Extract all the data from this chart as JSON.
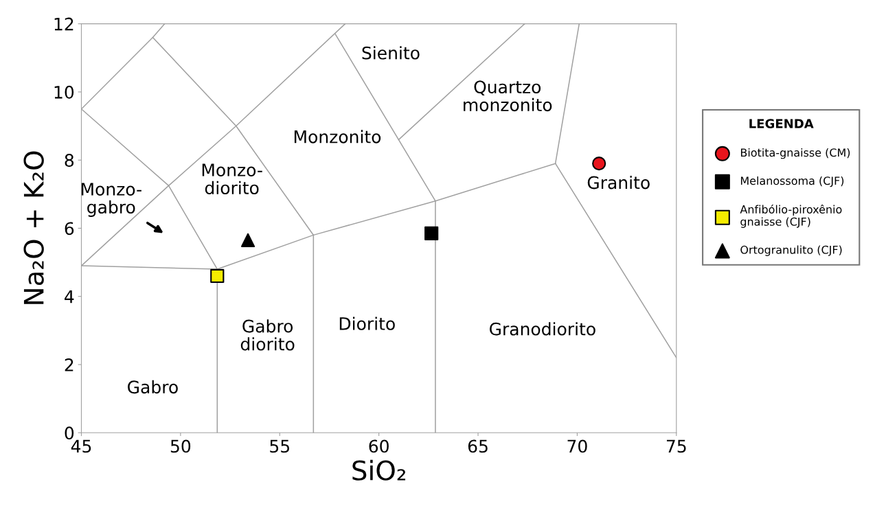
{
  "chart_data": {
    "type": "scatter",
    "xlabel": "SiO₂",
    "ylabel": "Na₂O + K₂O",
    "xlim": [
      45,
      75
    ],
    "ylim": [
      0,
      12
    ],
    "xticks": [
      45,
      50,
      55,
      60,
      65,
      70,
      75
    ],
    "yticks": [
      0,
      2,
      4,
      6,
      8,
      10,
      12
    ],
    "grid": false,
    "legend": "right",
    "legend_title": "LEGENDA",
    "series": [
      {
        "type": "line",
        "color": "#a0a0a0",
        "x": [
          45,
          49.4,
          51.85
        ],
        "values": [
          9.5,
          7.25,
          4.8
        ]
      },
      {
        "type": "line",
        "color": "#a0a0a0",
        "x": [
          45,
          49.4,
          52.8,
          58.3
        ],
        "values": [
          4.9,
          7.25,
          9.0,
          12
        ]
      },
      {
        "type": "line",
        "color": "#a0a0a0",
        "x": [
          45,
          48.6,
          49.2
        ],
        "values": [
          9.5,
          11.6,
          12
        ]
      },
      {
        "type": "line",
        "color": "#a0a0a0",
        "x": [
          48.6,
          52.8,
          56.7
        ],
        "values": [
          11.6,
          9.0,
          5.8
        ]
      },
      {
        "type": "line",
        "color": "#a0a0a0",
        "x": [
          57.8,
          62.85
        ],
        "values": [
          11.7,
          6.8
        ]
      },
      {
        "type": "line",
        "color": "#a0a0a0",
        "x": [
          61.0,
          67.35
        ],
        "values": [
          8.6,
          12
        ]
      },
      {
        "type": "line",
        "color": "#a0a0a0",
        "x": [
          70.1,
          68.9,
          75
        ],
        "values": [
          12,
          7.9,
          2.2
        ]
      },
      {
        "type": "line",
        "color": "#a0a0a0",
        "x": [
          45,
          51.85,
          56.7,
          62.85,
          68.9
        ],
        "values": [
          4.9,
          4.8,
          5.8,
          6.8,
          7.9
        ]
      },
      {
        "type": "line",
        "color": "#a0a0a0",
        "x": [
          51.85,
          51.85
        ],
        "values": [
          4.8,
          0
        ]
      },
      {
        "type": "line",
        "color": "#a0a0a0",
        "x": [
          56.7,
          56.7
        ],
        "values": [
          5.8,
          0
        ]
      },
      {
        "type": "line",
        "color": "#a0a0a0",
        "x": [
          62.85,
          62.85
        ],
        "values": [
          6.8,
          0
        ]
      },
      {
        "name": "Biotita-gnaisse (CM)",
        "color": "#e8141c",
        "marker": "circle",
        "x": [
          71.1
        ],
        "values": [
          7.9
        ]
      },
      {
        "name": "Melanossoma (CJF)",
        "color": "#000000",
        "marker": "square",
        "x": [
          62.65
        ],
        "values": [
          5.85
        ]
      },
      {
        "name": "Anfibólio-piroxênio\ngnaisse (CJF)",
        "color": "#f5ec00",
        "marker": "square",
        "x": [
          51.85
        ],
        "values": [
          4.6
        ]
      },
      {
        "name": "Ortogranulito (CJF)",
        "color": "#000000",
        "marker": "triangle",
        "x": [
          53.4
        ],
        "values": [
          5.65
        ]
      }
    ],
    "annotations": [
      "Monzo-\ngabro",
      "Sienito",
      "Quartzo\nmonzonito",
      "Monzonito",
      "Monzo-\ndiorito",
      "Granito",
      "Gabro\ndiorito",
      "Diorito",
      "Granodiorito",
      "Gabro"
    ]
  }
}
